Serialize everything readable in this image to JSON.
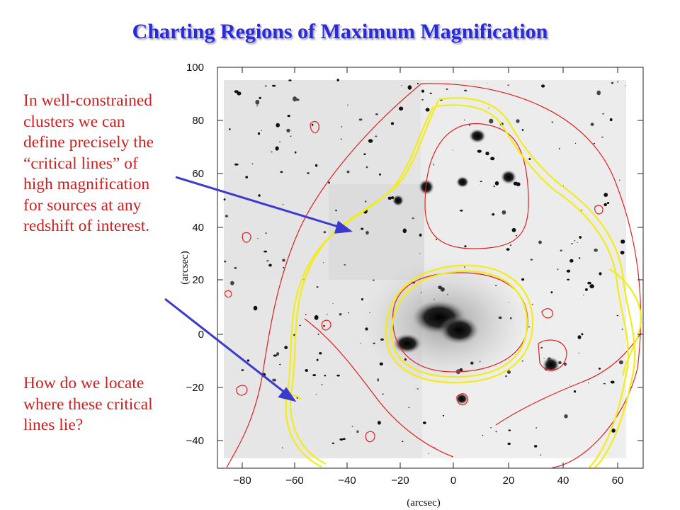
{
  "slide": {
    "title": "Charting Regions of Maximum Magnification",
    "paragraph1": "In well-constrained clusters we can define precisely the “critical lines” of high magnification for sources at any redshift of interest.",
    "paragraph2": "How do we locate where these critical lines lie?"
  },
  "figure": {
    "x_axis_label": "(arcsec)",
    "y_axis_label": "(arcsec)",
    "x_ticks": [
      "−80",
      "−60",
      "−40",
      "−20",
      "0",
      "20",
      "40",
      "60"
    ],
    "y_ticks": [
      "100",
      "80",
      "60",
      "40",
      "20",
      "0",
      "−20",
      "−40"
    ],
    "contour_colors": {
      "mass_contours": "#e02020",
      "critical_lines": "#f2ec1a"
    },
    "arrow_color": "#3a3acc"
  }
}
